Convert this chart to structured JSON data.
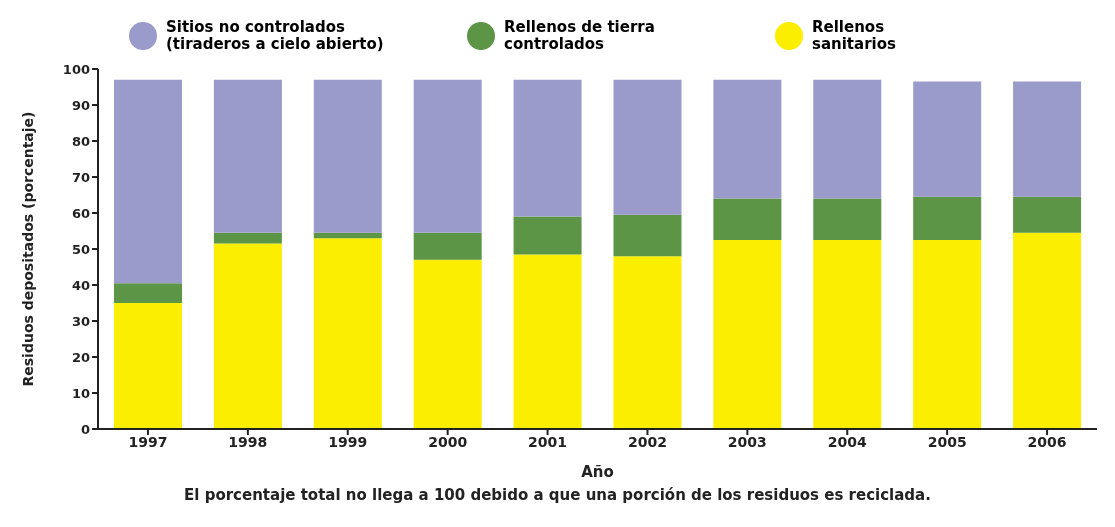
{
  "chart_data": {
    "type": "bar",
    "stacked": true,
    "xlabel": "Año",
    "ylabel": "Residuos depositados (porcentaje)",
    "categories": [
      "1997",
      "1998",
      "1999",
      "2000",
      "2001",
      "2002",
      "2003",
      "2004",
      "2005",
      "2006"
    ],
    "series": [
      {
        "name": "Rellenos sanitarios",
        "color": "#fcee00",
        "values": [
          35,
          51.5,
          53,
          47,
          48.5,
          48,
          52.5,
          52.5,
          52.5,
          54.5
        ]
      },
      {
        "name": "Rellenos de tierra controlados",
        "color": "#5b9545",
        "values": [
          5.5,
          3,
          1.5,
          7.5,
          10.5,
          11.5,
          11.5,
          11.5,
          12,
          10
        ]
      },
      {
        "name": "Sitios no controlados (tiraderos a cielo abierto)",
        "color": "#9a9acb",
        "values": [
          56.5,
          42.5,
          42.5,
          42.5,
          38,
          37.5,
          33,
          33,
          32,
          32
        ]
      }
    ],
    "ylim": [
      0,
      100
    ],
    "yticks": [
      0,
      10,
      20,
      30,
      40,
      50,
      60,
      70,
      80,
      90,
      100
    ],
    "legend": "top",
    "annotations": [
      "El porcentaje total no llega a 100 debido a que una porción de los residuos es reciclada."
    ]
  }
}
